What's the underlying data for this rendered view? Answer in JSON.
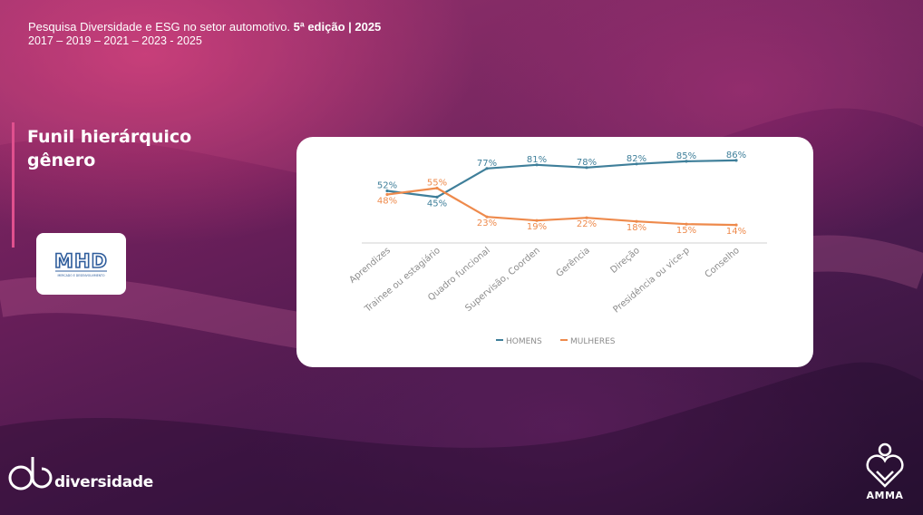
{
  "header": {
    "survey": "Pesquisa Diversidade e ESG no setor automotivo.",
    "edition": "5ª edição | 2025",
    "years": "2017 – 2019 – 2021 – 2023 - 2025"
  },
  "slide": {
    "title": "Funil hierárquico gênero"
  },
  "logos": {
    "mhd": "MHD",
    "mhd_tagline": "MERCADO E DESENVOLVIMENTO",
    "left_brand": "diversidade",
    "right_brand": "AMMA"
  },
  "colors": {
    "homens": "#3f7f9a",
    "mulheres": "#ee8a4c",
    "accent": "#e0508e"
  },
  "chart_data": {
    "type": "line",
    "categories": [
      "Aprendizes",
      "Trainee ou estagiário",
      "Quadro funcional",
      "Supervisão, Coorden",
      "Gerência",
      "Direção",
      "Presidência ou vice-p",
      "Conselho"
    ],
    "series": [
      {
        "name": "HOMENS",
        "values": [
          52,
          45,
          77,
          81,
          78,
          82,
          85,
          86
        ],
        "labels": [
          "52%",
          "45%",
          "77%",
          "81%",
          "78%",
          "82%",
          "85%",
          "86%"
        ]
      },
      {
        "name": "MULHERES",
        "values": [
          48,
          55,
          23,
          19,
          22,
          18,
          15,
          14
        ],
        "labels": [
          "48%",
          "55%",
          "23%",
          "19%",
          "22%",
          "18%",
          "15%",
          "14%"
        ]
      }
    ],
    "ylim": [
      0,
      100
    ],
    "grid": false,
    "legend": "bottom"
  }
}
